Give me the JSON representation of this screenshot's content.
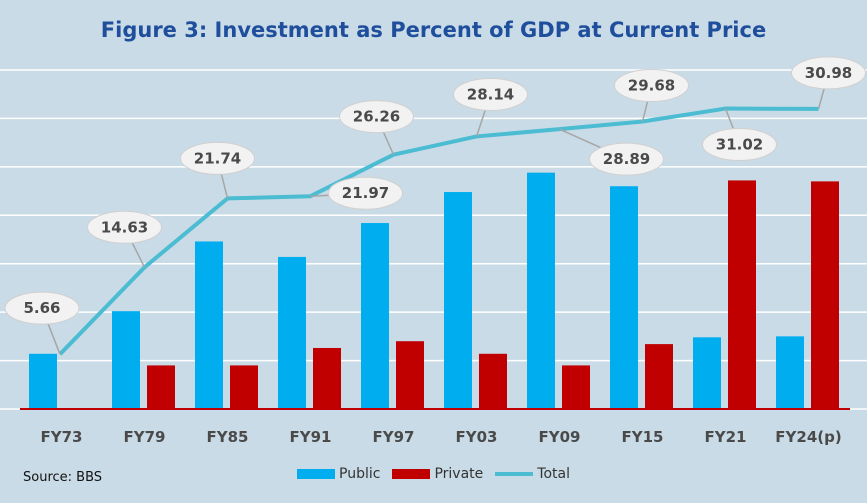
{
  "title": "Figure 3: Investment as Percent of GDP at Current Price",
  "source": "Source: BBS",
  "colors": {
    "background": "#c9dbe6",
    "public": "#00aeef",
    "private": "#c00000",
    "total": "#4bbcd2",
    "title": "#1f4e9c"
  },
  "chart_data": {
    "type": "bar",
    "title": "Figure 3: Investment as Percent of GDP at Current Price",
    "xlabel": "",
    "ylabel": "",
    "ylim": [
      0,
      35
    ],
    "grid": true,
    "legend_position": "bottom",
    "categories": [
      "FY73",
      "FY79",
      "FY85",
      "FY91",
      "FY97",
      "FY03",
      "FY09",
      "FY15",
      "FY21",
      "FY24(p)"
    ],
    "series": [
      {
        "name": "Public",
        "type": "bar",
        "values": [
          5.7,
          10.1,
          17.3,
          15.7,
          19.2,
          22.4,
          24.4,
          23.0,
          7.4,
          7.5
        ]
      },
      {
        "name": "Private",
        "type": "bar",
        "values": [
          0,
          4.5,
          4.5,
          6.3,
          7.0,
          5.7,
          4.5,
          6.7,
          23.6,
          23.5
        ]
      },
      {
        "name": "Total",
        "type": "line",
        "values": [
          5.66,
          14.63,
          21.74,
          21.97,
          26.26,
          28.14,
          28.89,
          29.68,
          31.02,
          30.98
        ]
      }
    ]
  }
}
